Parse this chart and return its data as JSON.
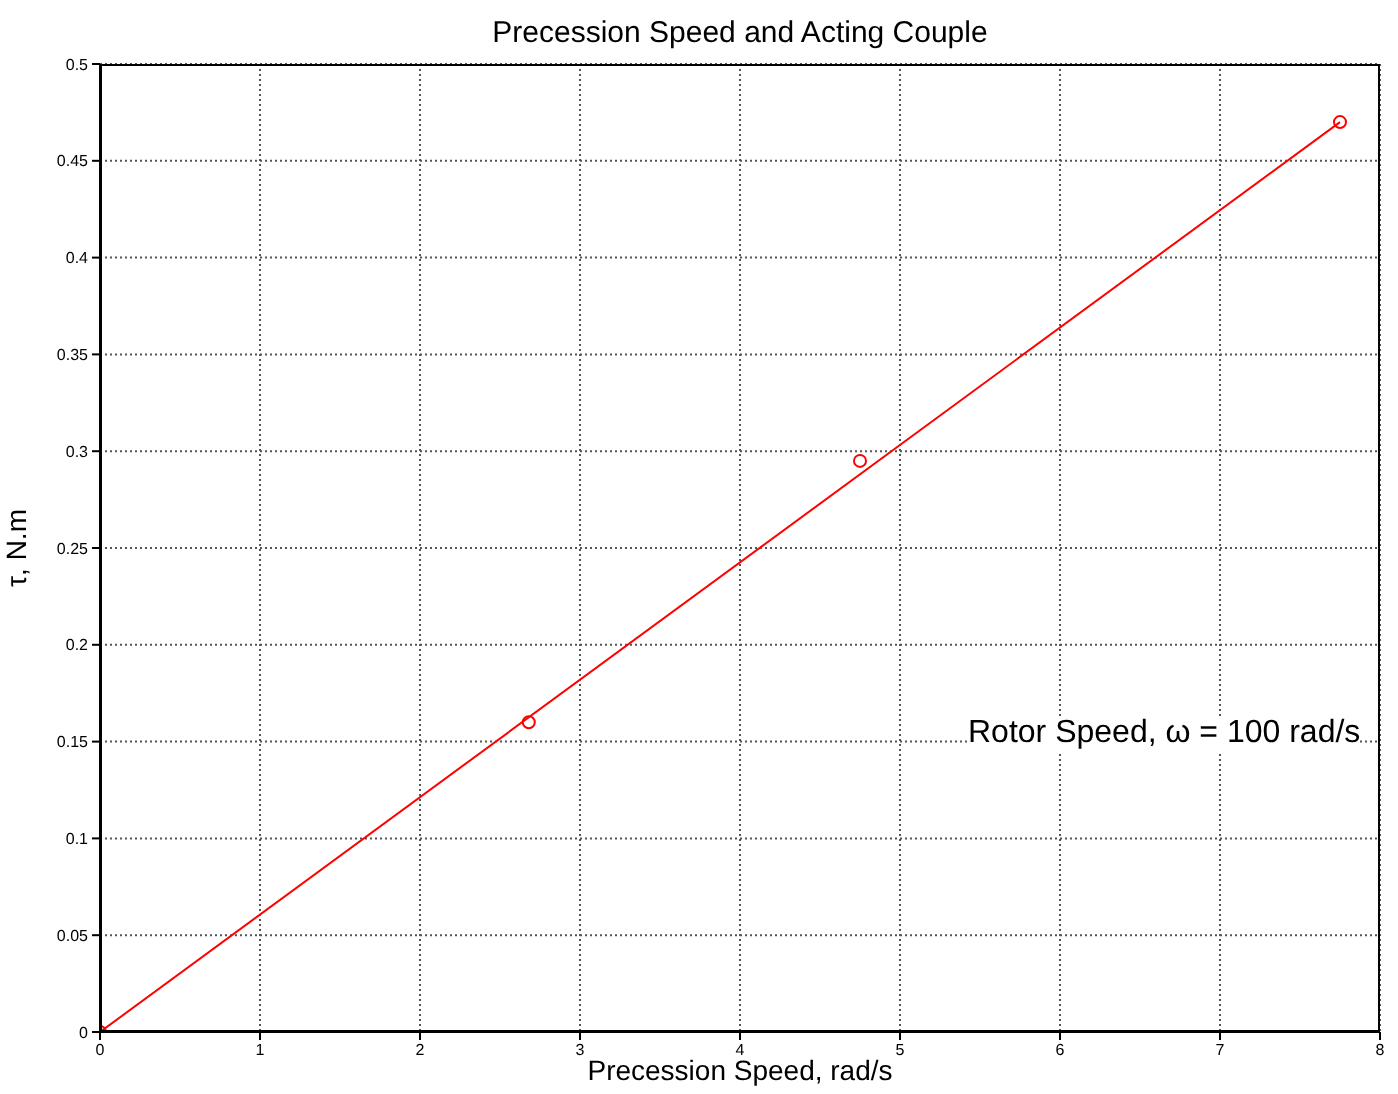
{
  "chart_data": {
    "type": "scatter",
    "title": "Precession Speed and Acting Couple",
    "xlabel": "Precession Speed, rad/s",
    "ylabel": "τ, N.m",
    "annotations": [
      "Rotor Speed, ω = 100 rad/s"
    ],
    "series": [
      {
        "color": "#ff0000",
        "marker": "circle",
        "x": [
          0,
          2.68,
          4.75,
          7.75
        ],
        "values": [
          0,
          0.16,
          0.295,
          0.47
        ]
      },
      {
        "type": "line",
        "color": "#ff0000",
        "x": [
          0,
          7.75
        ],
        "values": [
          0,
          0.47
        ]
      }
    ],
    "xlim": [
      0,
      8
    ],
    "xticks": [
      0,
      1,
      2,
      3,
      4,
      5,
      6,
      7,
      8
    ],
    "ylim": [
      0,
      0.5
    ],
    "yticks": [
      0,
      0.05,
      0.1,
      0.15,
      0.2,
      0.25,
      0.3,
      0.35,
      0.4,
      0.45,
      0.5
    ],
    "grid": true
  }
}
